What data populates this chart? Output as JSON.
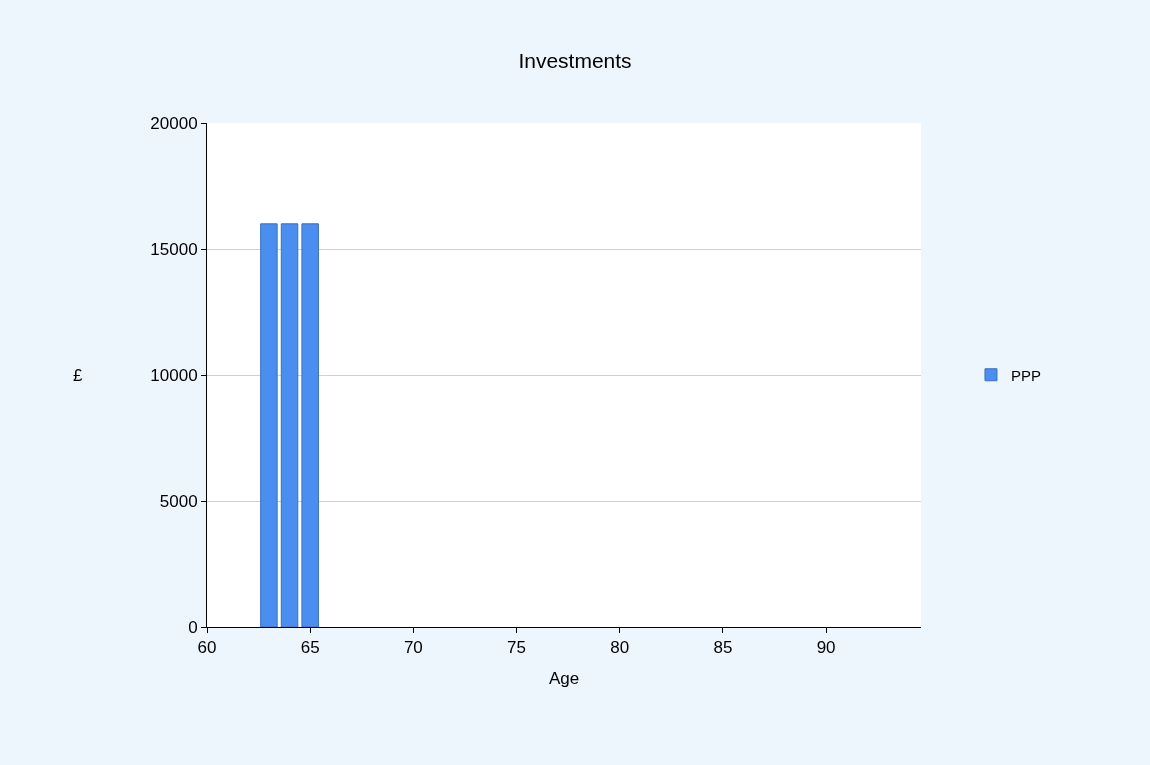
{
  "chart_data": {
    "type": "bar",
    "title": "Investments",
    "xlabel": "Age",
    "ylabel": "£",
    "x": [
      63,
      64,
      65
    ],
    "series": [
      {
        "name": "PPP",
        "color": "#4a8ff0",
        "values": [
          16000,
          16000,
          16000
        ]
      }
    ],
    "xlim": [
      60,
      94.6
    ],
    "xticks": [
      60,
      65,
      70,
      75,
      80,
      85,
      90
    ],
    "ylim": [
      0,
      20000
    ],
    "yticks": [
      0,
      5000,
      10000,
      15000,
      20000
    ],
    "grid": "y",
    "legend": "right"
  }
}
